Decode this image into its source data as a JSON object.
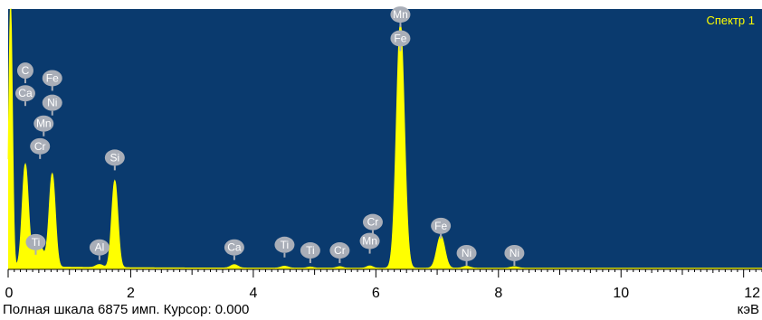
{
  "chart_data": {
    "type": "line",
    "spectrum_label": "Спектр 1",
    "xlim": [
      0,
      12.3
    ],
    "ylim": [
      0,
      6875
    ],
    "x_ticks": [
      0,
      2,
      4,
      6,
      8,
      10,
      12
    ],
    "x_tick_labels": [
      "0",
      "2",
      "4",
      "6",
      "8",
      "10",
      "12"
    ],
    "units": "кэВ",
    "full_scale_text": "Полная шкала 6875 имп. Курсор: 0.000",
    "background": "#0a3a6e",
    "line_color": "#ffff00",
    "peaks": [
      {
        "center": 0.04,
        "height": 6875,
        "width": 0.03
      },
      {
        "center": 0.28,
        "height": 2700,
        "width": 0.05
      },
      {
        "center": 0.45,
        "height": 300,
        "width": 0.06
      },
      {
        "center": 0.52,
        "height": 450,
        "width": 0.08
      },
      {
        "center": 0.72,
        "height": 2450,
        "width": 0.05
      },
      {
        "center": 1.49,
        "height": 80,
        "width": 0.06
      },
      {
        "center": 1.74,
        "height": 2300,
        "width": 0.05
      },
      {
        "center": 3.69,
        "height": 90,
        "width": 0.06
      },
      {
        "center": 4.51,
        "height": 50,
        "width": 0.06
      },
      {
        "center": 4.93,
        "height": 30,
        "width": 0.05
      },
      {
        "center": 5.41,
        "height": 40,
        "width": 0.05
      },
      {
        "center": 5.9,
        "height": 60,
        "width": 0.05
      },
      {
        "center": 6.4,
        "height": 6450,
        "width": 0.065
      },
      {
        "center": 7.06,
        "height": 860,
        "width": 0.065
      },
      {
        "center": 7.48,
        "height": 50,
        "width": 0.06
      },
      {
        "center": 8.26,
        "height": 40,
        "width": 0.06
      }
    ],
    "element_markers": [
      {
        "label": "C",
        "x": 0.28,
        "y": 5250
      },
      {
        "label": "Ca",
        "x": 0.28,
        "y": 4650
      },
      {
        "label": "Fe",
        "x": 0.72,
        "y": 5050
      },
      {
        "label": "Ni",
        "x": 0.72,
        "y": 4400
      },
      {
        "label": "Mn",
        "x": 0.58,
        "y": 3850
      },
      {
        "label": "Cr",
        "x": 0.52,
        "y": 3250
      },
      {
        "label": "Si",
        "x": 1.74,
        "y": 2950
      },
      {
        "label": "Ti",
        "x": 0.45,
        "y": 720
      },
      {
        "label": "Al",
        "x": 1.49,
        "y": 580
      },
      {
        "label": "Ca",
        "x": 3.69,
        "y": 580
      },
      {
        "label": "Ti",
        "x": 4.51,
        "y": 650
      },
      {
        "label": "Ti",
        "x": 4.93,
        "y": 500
      },
      {
        "label": "Cr",
        "x": 5.41,
        "y": 500
      },
      {
        "label": "Mn",
        "x": 5.9,
        "y": 750
      },
      {
        "label": "Cr",
        "x": 5.95,
        "y": 1250
      },
      {
        "label": "Mn",
        "x": 6.4,
        "y": 6730
      },
      {
        "label": "Fe",
        "x": 6.4,
        "y": 6100
      },
      {
        "label": "Fe",
        "x": 7.06,
        "y": 1150
      },
      {
        "label": "Ni",
        "x": 7.48,
        "y": 430
      },
      {
        "label": "Ni",
        "x": 8.26,
        "y": 430
      }
    ]
  }
}
